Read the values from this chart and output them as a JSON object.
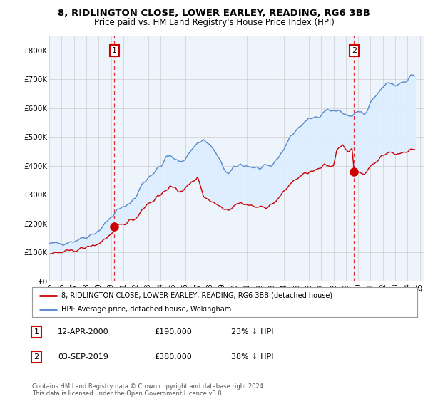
{
  "title1": "8, RIDLINGTON CLOSE, LOWER EARLEY, READING, RG6 3BB",
  "title2": "Price paid vs. HM Land Registry's House Price Index (HPI)",
  "ylim": [
    0,
    850000
  ],
  "yticks": [
    0,
    100000,
    200000,
    300000,
    400000,
    500000,
    600000,
    700000,
    800000
  ],
  "ytick_labels": [
    "£0",
    "£100K",
    "£200K",
    "£300K",
    "£400K",
    "£500K",
    "£600K",
    "£700K",
    "£800K"
  ],
  "xlim_start": 1995.0,
  "xlim_end": 2025.3,
  "transaction1_date": 2000.28,
  "transaction1_price": 190000,
  "transaction2_date": 2019.67,
  "transaction2_price": 380000,
  "sale_color": "#cc0000",
  "hpi_color": "#5588cc",
  "fill_color": "#ddeeff",
  "vline_color": "#dd3333",
  "legend_label1": "8, RIDLINGTON CLOSE, LOWER EARLEY, READING, RG6 3BB (detached house)",
  "legend_label2": "HPI: Average price, detached house, Wokingham",
  "annotation1_label": "1",
  "annotation1_date": "12-APR-2000",
  "annotation1_price": "£190,000",
  "annotation1_pct": "23% ↓ HPI",
  "annotation2_label": "2",
  "annotation2_date": "03-SEP-2019",
  "annotation2_price": "£380,000",
  "annotation2_pct": "38% ↓ HPI",
  "footer": "Contains HM Land Registry data © Crown copyright and database right 2024.\nThis data is licensed under the Open Government Licence v3.0.",
  "background_color": "#ffffff",
  "grid_color": "#cccccc",
  "chart_bg_color": "#eef4fb"
}
